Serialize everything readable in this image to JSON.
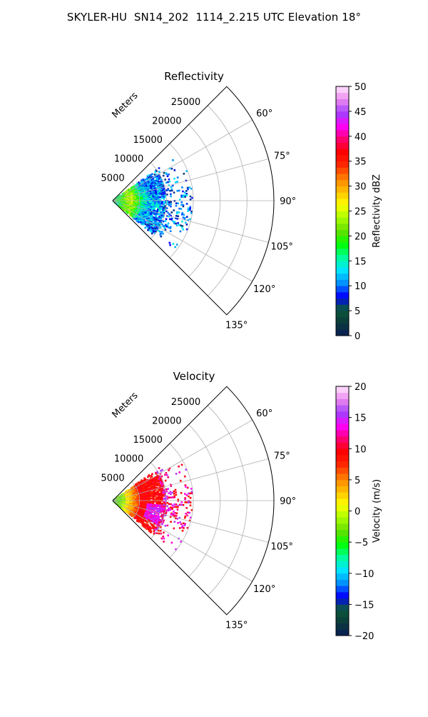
{
  "figure": {
    "suptitle": "SKYLER-HU  SN14_202  1114_2.215 UTC Elevation 18°"
  },
  "colormap_stops": [
    "#081d58",
    "#0c3a3a",
    "#0a5a3a",
    "#0000ff",
    "#0090ff",
    "#00e5ff",
    "#00ff99",
    "#00ff00",
    "#66dd00",
    "#aaff00",
    "#ffff00",
    "#ffc000",
    "#ff7f00",
    "#ff2a00",
    "#ff0000",
    "#ff0070",
    "#ff00ff",
    "#a040ff",
    "#ee88ee",
    "#ffe6ff"
  ],
  "grid_color": "#b0b0b0",
  "chart_data": [
    {
      "type": "polar-sector",
      "title": "Reflectivity",
      "theta_range_deg": [
        45,
        135
      ],
      "theta_ticks": [
        60,
        75,
        90,
        105,
        120,
        135
      ],
      "theta_tick_labels": [
        "60°",
        "75°",
        "90°",
        "105°",
        "120°",
        "135°"
      ],
      "r_max": 30000,
      "r_ticks": [
        5000,
        10000,
        15000,
        20000,
        25000
      ],
      "r_tick_labels": [
        "5000",
        "10000",
        "15000",
        "20000",
        "25000"
      ],
      "r_axis_label": "Meters",
      "data_extent": {
        "theta_deg": [
          55,
          130
        ],
        "r_max": 15000
      },
      "colorbar": {
        "label": "Reflectivity dBZ",
        "vmin": 0,
        "vmax": 50,
        "ticks": [
          0,
          5,
          10,
          15,
          20,
          25,
          30,
          35,
          40,
          45,
          50
        ],
        "tick_labels": [
          "0",
          "5",
          "10",
          "15",
          "20",
          "25",
          "30",
          "35",
          "40",
          "45",
          "50"
        ]
      }
    },
    {
      "type": "polar-sector",
      "title": "Velocity",
      "theta_range_deg": [
        45,
        135
      ],
      "theta_ticks": [
        60,
        75,
        90,
        105,
        120,
        135
      ],
      "theta_tick_labels": [
        "60°",
        "75°",
        "90°",
        "105°",
        "120°",
        "135°"
      ],
      "r_max": 30000,
      "r_ticks": [
        5000,
        10000,
        15000,
        20000,
        25000
      ],
      "r_tick_labels": [
        "5000",
        "10000",
        "15000",
        "20000",
        "25000"
      ],
      "r_axis_label": "Meters",
      "data_extent": {
        "theta_deg": [
          55,
          130
        ],
        "r_max": 15000
      },
      "colorbar": {
        "label": "Velocity (m/s)",
        "vmin": -20,
        "vmax": 20,
        "ticks": [
          -20,
          -15,
          -10,
          -5,
          0,
          5,
          10,
          15,
          20
        ],
        "tick_labels": [
          "−20",
          "−15",
          "−10",
          "−5",
          "0",
          "5",
          "10",
          "15",
          "20"
        ]
      }
    }
  ]
}
